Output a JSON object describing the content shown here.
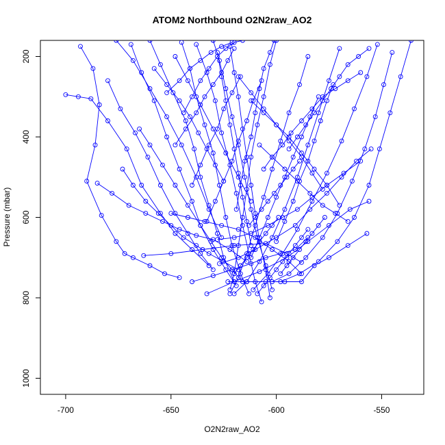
{
  "chart_data": {
    "type": "line",
    "title": "ATOM2 Northbound O2N2raw_AO2",
    "xlabel": "O2N2raw_AO2",
    "ylabel": "Pressure (mbar)",
    "xlim": [
      -712,
      -530
    ],
    "ylim": [
      1040,
      160
    ],
    "y_reversed": true,
    "x_ticks": [
      -700,
      -650,
      -600,
      -550
    ],
    "y_ticks": [
      200,
      400,
      600,
      800,
      1000
    ],
    "grid": false,
    "legend": "none",
    "color": "#0000ff",
    "series": [
      {
        "x": [
          -693,
          -687,
          -684,
          -686,
          -690,
          -683,
          -676,
          -672,
          -668,
          -660,
          -653,
          -646
        ],
        "y": [
          175,
          230,
          320,
          420,
          510,
          595,
          660,
          690,
          700,
          720,
          740,
          750
        ]
      },
      {
        "x": [
          -700,
          -694,
          -688,
          -680,
          -671,
          -664,
          -655,
          -648,
          -640,
          -632
        ],
        "y": [
          295,
          300,
          305,
          360,
          430,
          520,
          590,
          640,
          680,
          720
        ]
      },
      {
        "x": [
          -669,
          -664,
          -658,
          -652,
          -646,
          -640,
          -636,
          -630,
          -624,
          -619
        ],
        "y": [
          170,
          240,
          310,
          400,
          480,
          560,
          620,
          680,
          730,
          770
        ]
      },
      {
        "x": [
          -660,
          -655,
          -649,
          -643,
          -639,
          -636,
          -632,
          -628,
          -625,
          -620
        ],
        "y": [
          160,
          220,
          290,
          360,
          430,
          500,
          570,
          640,
          700,
          760
        ]
      },
      {
        "x": [
          -645,
          -641,
          -638,
          -634,
          -630,
          -627,
          -624,
          -621,
          -617,
          -613
        ],
        "y": [
          165,
          230,
          300,
          370,
          440,
          520,
          600,
          670,
          740,
          790
        ]
      },
      {
        "x": [
          -638,
          -633,
          -629,
          -626,
          -622,
          -619,
          -616,
          -613,
          -610,
          -607
        ],
        "y": [
          170,
          240,
          310,
          390,
          470,
          540,
          620,
          690,
          760,
          810
        ]
      },
      {
        "x": [
          -630,
          -627,
          -624,
          -621,
          -618,
          -615,
          -612,
          -609,
          -605,
          -602
        ],
        "y": [
          160,
          210,
          280,
          350,
          420,
          500,
          580,
          650,
          720,
          780
        ]
      },
      {
        "x": [
          -622,
          -620,
          -618,
          -616,
          -614,
          -612,
          -610,
          -608,
          -605,
          -603
        ],
        "y": [
          175,
          240,
          300,
          380,
          450,
          520,
          590,
          660,
          730,
          800
        ]
      },
      {
        "x": [
          -600,
          -603,
          -606,
          -609,
          -612,
          -614,
          -616,
          -618,
          -620,
          -622
        ],
        "y": [
          160,
          220,
          300,
          370,
          450,
          530,
          600,
          670,
          740,
          780
        ]
      },
      {
        "x": [
          -585,
          -589,
          -594,
          -598,
          -602,
          -606,
          -610,
          -614,
          -618,
          -622
        ],
        "y": [
          200,
          270,
          340,
          410,
          480,
          550,
          620,
          690,
          750,
          790
        ]
      },
      {
        "x": [
          -570,
          -575,
          -580,
          -585,
          -590,
          -596,
          -602,
          -608,
          -614,
          -620
        ],
        "y": [
          180,
          260,
          340,
          420,
          500,
          580,
          650,
          710,
          760,
          790
        ]
      },
      {
        "x": [
          -552,
          -557,
          -563,
          -569,
          -576,
          -583,
          -590,
          -597,
          -604,
          -611
        ],
        "y": [
          170,
          250,
          330,
          410,
          490,
          560,
          630,
          690,
          740,
          780
        ]
      },
      {
        "x": [
          -545,
          -549,
          -553,
          -558,
          -564,
          -571,
          -578,
          -586,
          -594,
          -602
        ],
        "y": [
          190,
          270,
          350,
          430,
          510,
          590,
          650,
          700,
          740,
          760
        ]
      },
      {
        "x": [
          -536,
          -541,
          -546,
          -551,
          -556,
          -563,
          -571,
          -580,
          -589,
          -598
        ],
        "y": [
          160,
          250,
          340,
          430,
          520,
          600,
          660,
          710,
          740,
          760
        ]
      },
      {
        "x": [
          -676,
          -668,
          -660,
          -652,
          -645,
          -638,
          -632,
          -626
        ],
        "y": [
          160,
          210,
          280,
          350,
          420,
          500,
          580,
          650
        ]
      },
      {
        "x": [
          -680,
          -674,
          -667,
          -661,
          -655,
          -648,
          -642,
          -636,
          -630
        ],
        "y": [
          260,
          330,
          390,
          450,
          520,
          590,
          640,
          690,
          730
        ]
      },
      {
        "x": [
          -665,
          -660,
          -654,
          -648,
          -642,
          -636,
          -631,
          -626,
          -621,
          -616
        ],
        "y": [
          380,
          420,
          470,
          520,
          570,
          620,
          660,
          700,
          730,
          760
        ]
      },
      {
        "x": [
          -673,
          -668,
          -662,
          -656,
          -650,
          -644,
          -638,
          -632,
          -625,
          -618
        ],
        "y": [
          480,
          520,
          560,
          590,
          620,
          650,
          670,
          690,
          710,
          730
        ]
      },
      {
        "x": [
          -685,
          -678,
          -670,
          -662,
          -654,
          -646,
          -638,
          -630,
          -622,
          -614
        ],
        "y": [
          515,
          540,
          570,
          590,
          610,
          630,
          645,
          655,
          680,
          710
        ]
      },
      {
        "x": [
          -650,
          -642,
          -634,
          -626,
          -618,
          -610,
          -602,
          -594,
          -588
        ],
        "y": [
          590,
          600,
          610,
          620,
          630,
          650,
          680,
          710,
          740
        ]
      },
      {
        "x": [
          -663,
          -650,
          -635,
          -620,
          -605,
          -595,
          -588
        ],
        "y": [
          695,
          690,
          680,
          670,
          665,
          690,
          712
        ]
      },
      {
        "x": [
          -633,
          -620,
          -608,
          -595,
          -585,
          -575,
          -565,
          -556
        ],
        "y": [
          790,
          760,
          735,
          700,
          660,
          620,
          580,
          560
        ]
      },
      {
        "x": [
          -640,
          -630,
          -621,
          -612,
          -605,
          -598,
          -591,
          -585
        ],
        "y": [
          760,
          745,
          730,
          715,
          700,
          690,
          680,
          650
        ]
      },
      {
        "x": [
          -623,
          -614,
          -605,
          -596,
          -588,
          -582,
          -575,
          -566,
          -557
        ],
        "y": [
          760,
          760,
          760,
          760,
          760,
          720,
          700,
          670,
          640
        ]
      },
      {
        "x": [
          -628,
          -620,
          -612,
          -604,
          -597,
          -590,
          -583,
          -576,
          -568,
          -560
        ],
        "y": [
          655,
          650,
          640,
          620,
          600,
          580,
          550,
          520,
          490,
          460
        ]
      },
      {
        "x": [
          -627,
          -618,
          -610,
          -600,
          -591,
          -584,
          -576,
          -569,
          -562,
          -555
        ],
        "y": [
          715,
          700,
          680,
          650,
          620,
          580,
          540,
          500,
          460,
          430
        ]
      },
      {
        "x": [
          -606,
          -602,
          -597,
          -593,
          -588,
          -583,
          -578,
          -572,
          -566,
          -560
        ],
        "y": [
          480,
          450,
          420,
          390,
          360,
          330,
          300,
          280,
          260,
          240
        ]
      },
      {
        "x": [
          -594,
          -590,
          -586,
          -582,
          -578,
          -574,
          -570,
          -566,
          -561,
          -556
        ],
        "y": [
          430,
          400,
          370,
          340,
          310,
          280,
          250,
          220,
          200,
          180
        ]
      },
      {
        "x": [
          -600,
          -596,
          -592,
          -589,
          -585,
          -582,
          -579,
          -576,
          -573
        ],
        "y": [
          660,
          610,
          560,
          510,
          460,
          410,
          360,
          310,
          270
        ]
      },
      {
        "x": [
          -612,
          -608,
          -604,
          -600,
          -596,
          -592,
          -588,
          -584,
          -580
        ],
        "y": [
          700,
          650,
          600,
          550,
          500,
          450,
          400,
          350,
          300
        ]
      },
      {
        "x": [
          -619,
          -617,
          -615,
          -612,
          -610,
          -608,
          -606,
          -603,
          -601
        ],
        "y": [
          580,
          520,
          460,
          400,
          340,
          280,
          230,
          190,
          160
        ]
      },
      {
        "x": [
          -644,
          -640,
          -636,
          -632,
          -628,
          -624,
          -620,
          -616
        ],
        "y": [
          340,
          300,
          260,
          230,
          200,
          180,
          165,
          160
        ]
      },
      {
        "x": [
          -652,
          -646,
          -641,
          -636,
          -631,
          -626,
          -621
        ],
        "y": [
          290,
          260,
          230,
          210,
          190,
          175,
          165
        ]
      },
      {
        "x": [
          -648,
          -643,
          -638,
          -634,
          -630,
          -626,
          -623,
          -620
        ],
        "y": [
          420,
          380,
          340,
          300,
          270,
          240,
          210,
          180
        ]
      },
      {
        "x": [
          -640,
          -636,
          -632,
          -628,
          -625,
          -621,
          -617
        ],
        "y": [
          520,
          470,
          420,
          380,
          330,
          290,
          250
        ]
      },
      {
        "x": [
          -633,
          -629,
          -625,
          -621,
          -618,
          -614,
          -611,
          -607
        ],
        "y": [
          610,
          560,
          510,
          460,
          410,
          360,
          310,
          260
        ]
      },
      {
        "x": [
          -618,
          -612,
          -606,
          -600,
          -594,
          -588,
          -583,
          -578
        ],
        "y": [
          250,
          290,
          330,
          370,
          410,
          450,
          490,
          530
        ]
      },
      {
        "x": [
          -612,
          -606,
          -600,
          -594,
          -588,
          -582,
          -576,
          -570
        ],
        "y": [
          310,
          340,
          370,
          400,
          440,
          480,
          520,
          570
        ]
      },
      {
        "x": [
          -608,
          -602,
          -596,
          -590,
          -584,
          -578,
          -572,
          -566
        ],
        "y": [
          420,
          450,
          480,
          510,
          540,
          570,
          590,
          610
        ]
      },
      {
        "x": [
          -648,
          -642,
          -636,
          -630,
          -624,
          -618,
          -612
        ],
        "y": [
          200,
          260,
          320,
          380,
          440,
          500,
          560
        ]
      },
      {
        "x": [
          -628,
          -626,
          -624,
          -622,
          -620,
          -618,
          -616,
          -614,
          -612
        ],
        "y": [
          190,
          250,
          310,
          370,
          430,
          490,
          550,
          610,
          670
        ]
      },
      {
        "x": [
          -658,
          -652,
          -646,
          -641,
          -637,
          -633,
          -629,
          -625
        ],
        "y": [
          230,
          270,
          310,
          350,
          390,
          430,
          470,
          510
        ]
      },
      {
        "x": [
          -613,
          -610,
          -607,
          -604,
          -601,
          -598,
          -595,
          -592,
          -589
        ],
        "y": [
          620,
          600,
          580,
          560,
          540,
          520,
          500,
          480,
          460
        ]
      },
      {
        "x": [
          -598,
          -595,
          -592,
          -589,
          -586,
          -583,
          -580,
          -577
        ],
        "y": [
          740,
          720,
          700,
          680,
          660,
          640,
          620,
          600
        ]
      },
      {
        "x": [
          -609,
          -606,
          -603,
          -600,
          -597,
          -594,
          -591,
          -588,
          -585
        ],
        "y": [
          790,
          770,
          750,
          730,
          710,
          690,
          670,
          650,
          630
        ]
      },
      {
        "x": [
          -620,
          -617,
          -614,
          -611,
          -608,
          -605,
          -602,
          -599
        ],
        "y": [
          740,
          720,
          700,
          680,
          660,
          640,
          620,
          600
        ]
      }
    ]
  }
}
